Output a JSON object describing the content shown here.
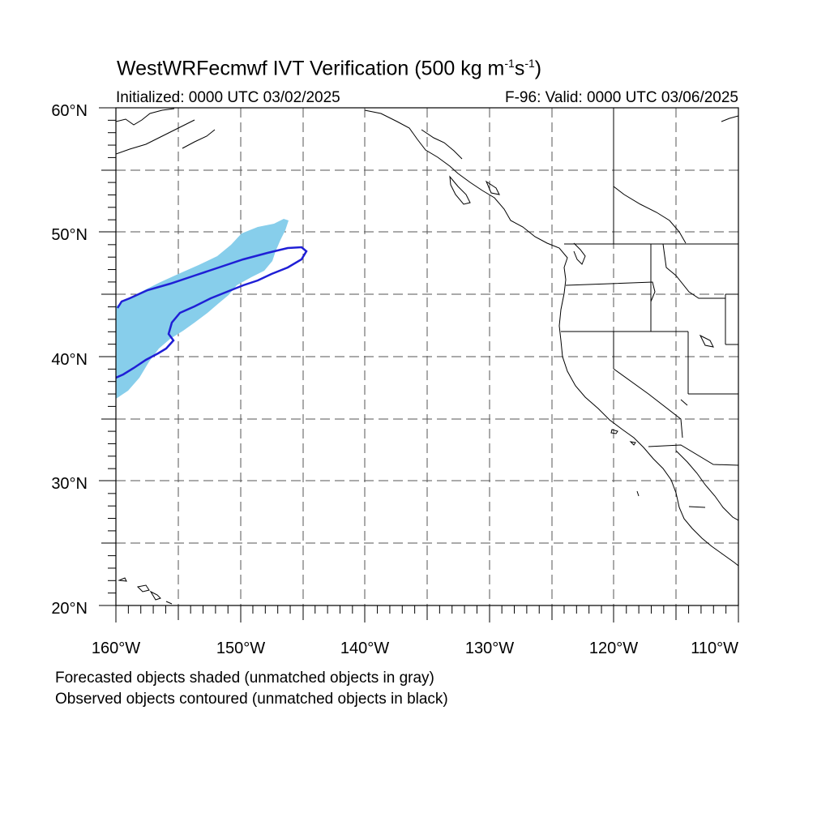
{
  "title": {
    "prefix": "WestWRFecmwf IVT Verification (500 kg m",
    "sup1": "-1",
    "mid": "s",
    "sup2": "-1",
    "suffix": ")"
  },
  "initialized": "Initialized: 0000 UTC 03/02/2025",
  "valid": "F-96: Valid: 0000 UTC 03/06/2025",
  "map": {
    "lon_range": [
      -160,
      -110
    ],
    "lat_range": [
      20,
      60
    ],
    "lat_labels": [
      "20°N",
      "30°N",
      "40°N",
      "50°N",
      "60°N"
    ],
    "lon_labels": [
      "160°W",
      "150°W",
      "140°W",
      "130°W",
      "120°W",
      "110°W"
    ],
    "grid_style": "dashed",
    "colors": {
      "forecast_fill": "#87ceeb",
      "observed_line": "#1f1fd6",
      "coastline": "#000000",
      "grid": "#555555"
    }
  },
  "footer": {
    "line1": "Forecasted objects shaded (unmatched objects in gray)",
    "line2": "Observed objects contoured (unmatched objects in black)"
  }
}
